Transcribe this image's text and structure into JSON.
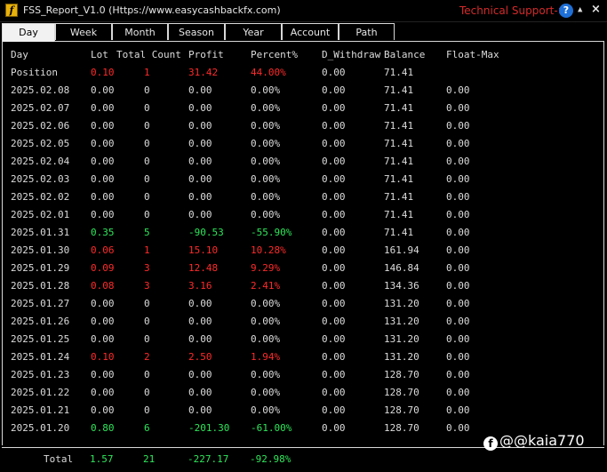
{
  "window": {
    "title": "FSS_Report_V1.0 (Https://www.easycashbackfx.com)",
    "support_label": "Technical Support->",
    "icon_glyph": "f",
    "help_glyph": "?",
    "collapse_glyph": "▲",
    "close_glyph": "×"
  },
  "tabs": [
    "Day",
    "Week",
    "Month",
    "Season",
    "Year",
    "Account",
    "Path"
  ],
  "active_tab": "Day",
  "colors": {
    "red": "#ff2a2a",
    "green": "#2ee65a",
    "text": "#dcdcdc",
    "accent_support": "#d42a2a"
  },
  "columns": {
    "day": "Day",
    "lot": "Lot",
    "total_count": "Total Count",
    "profit": "Profit",
    "percent": "Percent%",
    "withdraw": "D_Withdraw",
    "balance": "Balance",
    "float_max": "Float-Max"
  },
  "rows": [
    {
      "day": "Position",
      "lot": "0.10",
      "count": "1",
      "profit": "31.42",
      "pct": "44.00%",
      "wd": "0.00",
      "bal": "71.41",
      "fm": "",
      "tone": "red"
    },
    {
      "day": "2025.02.08",
      "lot": "0.00",
      "count": "0",
      "profit": "0.00",
      "pct": "0.00%",
      "wd": "0.00",
      "bal": "71.41",
      "fm": "0.00",
      "tone": "neutral"
    },
    {
      "day": "2025.02.07",
      "lot": "0.00",
      "count": "0",
      "profit": "0.00",
      "pct": "0.00%",
      "wd": "0.00",
      "bal": "71.41",
      "fm": "0.00",
      "tone": "neutral"
    },
    {
      "day": "2025.02.06",
      "lot": "0.00",
      "count": "0",
      "profit": "0.00",
      "pct": "0.00%",
      "wd": "0.00",
      "bal": "71.41",
      "fm": "0.00",
      "tone": "neutral"
    },
    {
      "day": "2025.02.05",
      "lot": "0.00",
      "count": "0",
      "profit": "0.00",
      "pct": "0.00%",
      "wd": "0.00",
      "bal": "71.41",
      "fm": "0.00",
      "tone": "neutral"
    },
    {
      "day": "2025.02.04",
      "lot": "0.00",
      "count": "0",
      "profit": "0.00",
      "pct": "0.00%",
      "wd": "0.00",
      "bal": "71.41",
      "fm": "0.00",
      "tone": "neutral"
    },
    {
      "day": "2025.02.03",
      "lot": "0.00",
      "count": "0",
      "profit": "0.00",
      "pct": "0.00%",
      "wd": "0.00",
      "bal": "71.41",
      "fm": "0.00",
      "tone": "neutral"
    },
    {
      "day": "2025.02.02",
      "lot": "0.00",
      "count": "0",
      "profit": "0.00",
      "pct": "0.00%",
      "wd": "0.00",
      "bal": "71.41",
      "fm": "0.00",
      "tone": "neutral"
    },
    {
      "day": "2025.02.01",
      "lot": "0.00",
      "count": "0",
      "profit": "0.00",
      "pct": "0.00%",
      "wd": "0.00",
      "bal": "71.41",
      "fm": "0.00",
      "tone": "neutral"
    },
    {
      "day": "2025.01.31",
      "lot": "0.35",
      "count": "5",
      "profit": "-90.53",
      "pct": "-55.90%",
      "wd": "0.00",
      "bal": "71.41",
      "fm": "0.00",
      "tone": "green"
    },
    {
      "day": "2025.01.30",
      "lot": "0.06",
      "count": "1",
      "profit": "15.10",
      "pct": "10.28%",
      "wd": "0.00",
      "bal": "161.94",
      "fm": "0.00",
      "tone": "red"
    },
    {
      "day": "2025.01.29",
      "lot": "0.09",
      "count": "3",
      "profit": "12.48",
      "pct": "9.29%",
      "wd": "0.00",
      "bal": "146.84",
      "fm": "0.00",
      "tone": "red"
    },
    {
      "day": "2025.01.28",
      "lot": "0.08",
      "count": "3",
      "profit": "3.16",
      "pct": "2.41%",
      "wd": "0.00",
      "bal": "134.36",
      "fm": "0.00",
      "tone": "red"
    },
    {
      "day": "2025.01.27",
      "lot": "0.00",
      "count": "0",
      "profit": "0.00",
      "pct": "0.00%",
      "wd": "0.00",
      "bal": "131.20",
      "fm": "0.00",
      "tone": "neutral"
    },
    {
      "day": "2025.01.26",
      "lot": "0.00",
      "count": "0",
      "profit": "0.00",
      "pct": "0.00%",
      "wd": "0.00",
      "bal": "131.20",
      "fm": "0.00",
      "tone": "neutral"
    },
    {
      "day": "2025.01.25",
      "lot": "0.00",
      "count": "0",
      "profit": "0.00",
      "pct": "0.00%",
      "wd": "0.00",
      "bal": "131.20",
      "fm": "0.00",
      "tone": "neutral"
    },
    {
      "day": "2025.01.24",
      "lot": "0.10",
      "count": "2",
      "profit": "2.50",
      "pct": "1.94%",
      "wd": "0.00",
      "bal": "131.20",
      "fm": "0.00",
      "tone": "red"
    },
    {
      "day": "2025.01.23",
      "lot": "0.00",
      "count": "0",
      "profit": "0.00",
      "pct": "0.00%",
      "wd": "0.00",
      "bal": "128.70",
      "fm": "0.00",
      "tone": "neutral"
    },
    {
      "day": "2025.01.22",
      "lot": "0.00",
      "count": "0",
      "profit": "0.00",
      "pct": "0.00%",
      "wd": "0.00",
      "bal": "128.70",
      "fm": "0.00",
      "tone": "neutral"
    },
    {
      "day": "2025.01.21",
      "lot": "0.00",
      "count": "0",
      "profit": "0.00",
      "pct": "0.00%",
      "wd": "0.00",
      "bal": "128.70",
      "fm": "0.00",
      "tone": "neutral"
    },
    {
      "day": "2025.01.20",
      "lot": "0.80",
      "count": "6",
      "profit": "-201.30",
      "pct": "-61.00%",
      "wd": "0.00",
      "bal": "128.70",
      "fm": "0.00",
      "tone": "green"
    }
  ],
  "total": {
    "label": "Total",
    "lot": "1.57",
    "count": "21",
    "profit": "-227.17",
    "pct": "-92.98%",
    "tone": "green"
  },
  "watermark": {
    "icon": "f",
    "text": "@@kaia770"
  }
}
